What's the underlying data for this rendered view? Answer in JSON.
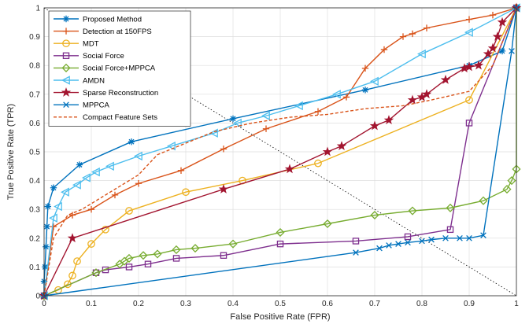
{
  "chart_data": {
    "type": "line",
    "title": "",
    "xlabel": "False Positive Rate (FPR)",
    "ylabel": "True Positive Rate (TPR)",
    "xlim": [
      0,
      1
    ],
    "ylim": [
      0,
      1
    ],
    "xticks": [
      "0",
      "0.1",
      "0.2",
      "0.3",
      "0.4",
      "0.5",
      "0.6",
      "0.7",
      "0.8",
      "0.9",
      "1"
    ],
    "yticks": [
      "0",
      "0.1",
      "0.2",
      "0.3",
      "0.4",
      "0.5",
      "0.6",
      "0.7",
      "0.8",
      "0.9",
      "1"
    ],
    "grid": true,
    "legend_position": "top-left",
    "reference_line": {
      "style": "dotted",
      "color": "#000000",
      "points": [
        [
          0,
          1
        ],
        [
          1,
          0
        ]
      ]
    },
    "series": [
      {
        "name": "Proposed Method",
        "color": "#0072BD",
        "marker": "asterisk",
        "dashed": false,
        "points": [
          [
            0,
            0
          ],
          [
            0,
            0.05
          ],
          [
            0.002,
            0.1
          ],
          [
            0.004,
            0.17
          ],
          [
            0.006,
            0.24
          ],
          [
            0.008,
            0.31
          ],
          [
            0.02,
            0.375
          ],
          [
            0.075,
            0.455
          ],
          [
            0.185,
            0.535
          ],
          [
            0.4,
            0.615
          ],
          [
            0.68,
            0.715
          ],
          [
            0.9,
            0.8
          ],
          [
            0.97,
            0.85
          ],
          [
            1,
            1
          ]
        ]
      },
      {
        "name": "Detection at 150FPS",
        "color": "#D95319",
        "marker": "plus",
        "dashed": false,
        "points": [
          [
            0,
            0
          ],
          [
            0.02,
            0.24
          ],
          [
            0.06,
            0.28
          ],
          [
            0.1,
            0.3
          ],
          [
            0.15,
            0.35
          ],
          [
            0.2,
            0.39
          ],
          [
            0.29,
            0.435
          ],
          [
            0.38,
            0.51
          ],
          [
            0.47,
            0.58
          ],
          [
            0.58,
            0.64
          ],
          [
            0.64,
            0.69
          ],
          [
            0.68,
            0.79
          ],
          [
            0.72,
            0.855
          ],
          [
            0.76,
            0.9
          ],
          [
            0.78,
            0.91
          ],
          [
            0.81,
            0.93
          ],
          [
            0.9,
            0.96
          ],
          [
            0.95,
            0.975
          ],
          [
            1,
            1
          ]
        ]
      },
      {
        "name": "MDT",
        "color": "#EDB120",
        "marker": "circle",
        "dashed": false,
        "points": [
          [
            0,
            0
          ],
          [
            0.03,
            0.02
          ],
          [
            0.05,
            0.04
          ],
          [
            0.06,
            0.07
          ],
          [
            0.07,
            0.12
          ],
          [
            0.1,
            0.18
          ],
          [
            0.13,
            0.23
          ],
          [
            0.18,
            0.295
          ],
          [
            0.3,
            0.36
          ],
          [
            0.42,
            0.4
          ],
          [
            0.58,
            0.46
          ],
          [
            0.9,
            0.68
          ],
          [
            1,
            1
          ]
        ]
      },
      {
        "name": "Social Force",
        "color": "#7E2F8E",
        "marker": "square",
        "dashed": false,
        "points": [
          [
            0,
            0
          ],
          [
            0.11,
            0.08
          ],
          [
            0.13,
            0.09
          ],
          [
            0.18,
            0.1
          ],
          [
            0.22,
            0.11
          ],
          [
            0.28,
            0.13
          ],
          [
            0.38,
            0.14
          ],
          [
            0.5,
            0.18
          ],
          [
            0.66,
            0.19
          ],
          [
            0.77,
            0.205
          ],
          [
            0.86,
            0.23
          ],
          [
            0.9,
            0.6
          ],
          [
            1,
            1
          ]
        ]
      },
      {
        "name": "Social Force+MPPCA",
        "color": "#77AC30",
        "marker": "diamond",
        "dashed": false,
        "points": [
          [
            0,
            0
          ],
          [
            0.11,
            0.08
          ],
          [
            0.16,
            0.11
          ],
          [
            0.17,
            0.12
          ],
          [
            0.18,
            0.13
          ],
          [
            0.21,
            0.14
          ],
          [
            0.24,
            0.145
          ],
          [
            0.28,
            0.16
          ],
          [
            0.32,
            0.165
          ],
          [
            0.4,
            0.18
          ],
          [
            0.5,
            0.22
          ],
          [
            0.6,
            0.25
          ],
          [
            0.7,
            0.28
          ],
          [
            0.78,
            0.295
          ],
          [
            0.86,
            0.305
          ],
          [
            0.93,
            0.33
          ],
          [
            0.98,
            0.37
          ],
          [
            0.99,
            0.4
          ],
          [
            1,
            0.44
          ],
          [
            1,
            1
          ]
        ]
      },
      {
        "name": "AMDN",
        "color": "#4DBEEE",
        "marker": "triangle-left",
        "dashed": false,
        "points": [
          [
            0,
            0
          ],
          [
            0.02,
            0.27
          ],
          [
            0.03,
            0.31
          ],
          [
            0.045,
            0.36
          ],
          [
            0.07,
            0.385
          ],
          [
            0.09,
            0.41
          ],
          [
            0.11,
            0.43
          ],
          [
            0.14,
            0.45
          ],
          [
            0.2,
            0.485
          ],
          [
            0.27,
            0.52
          ],
          [
            0.36,
            0.565
          ],
          [
            0.41,
            0.6
          ],
          [
            0.47,
            0.625
          ],
          [
            0.54,
            0.66
          ],
          [
            0.62,
            0.7
          ],
          [
            0.7,
            0.745
          ],
          [
            0.8,
            0.84
          ],
          [
            0.9,
            0.915
          ],
          [
            1,
            1
          ]
        ]
      },
      {
        "name": "Sparse Reconstruction",
        "color": "#A2142F",
        "marker": "star",
        "dashed": false,
        "points": [
          [
            0,
            0
          ],
          [
            0.06,
            0.2
          ],
          [
            0.38,
            0.37
          ],
          [
            0.52,
            0.44
          ],
          [
            0.6,
            0.5
          ],
          [
            0.63,
            0.52
          ],
          [
            0.7,
            0.59
          ],
          [
            0.73,
            0.61
          ],
          [
            0.78,
            0.68
          ],
          [
            0.8,
            0.69
          ],
          [
            0.81,
            0.7
          ],
          [
            0.85,
            0.75
          ],
          [
            0.89,
            0.79
          ],
          [
            0.9,
            0.795
          ],
          [
            0.92,
            0.8
          ],
          [
            0.94,
            0.84
          ],
          [
            0.95,
            0.86
          ],
          [
            0.96,
            0.9
          ],
          [
            0.97,
            0.95
          ],
          [
            1,
            1
          ]
        ]
      },
      {
        "name": "MPPCA",
        "color": "#0072BD",
        "marker": "cross",
        "dashed": false,
        "points": [
          [
            0,
            0
          ],
          [
            0.66,
            0.15
          ],
          [
            0.71,
            0.165
          ],
          [
            0.73,
            0.175
          ],
          [
            0.75,
            0.18
          ],
          [
            0.77,
            0.185
          ],
          [
            0.8,
            0.19
          ],
          [
            0.82,
            0.195
          ],
          [
            0.85,
            0.2
          ],
          [
            0.88,
            0.2
          ],
          [
            0.9,
            0.2
          ],
          [
            0.93,
            0.21
          ],
          [
            0.99,
            0.85
          ],
          [
            1,
            1
          ]
        ]
      },
      {
        "name": "Compact Feature Sets",
        "color": "#D95319",
        "marker": "none",
        "dashed": true,
        "points": [
          [
            0,
            0
          ],
          [
            0.02,
            0.2
          ],
          [
            0.05,
            0.28
          ],
          [
            0.08,
            0.3
          ],
          [
            0.12,
            0.34
          ],
          [
            0.16,
            0.38
          ],
          [
            0.2,
            0.42
          ],
          [
            0.24,
            0.49
          ],
          [
            0.3,
            0.53
          ],
          [
            0.36,
            0.57
          ],
          [
            0.44,
            0.6
          ],
          [
            0.52,
            0.62
          ],
          [
            0.6,
            0.63
          ],
          [
            0.68,
            0.65
          ],
          [
            0.76,
            0.66
          ],
          [
            0.82,
            0.68
          ],
          [
            0.9,
            0.71
          ],
          [
            0.95,
            0.8
          ],
          [
            1,
            1
          ]
        ]
      }
    ]
  }
}
